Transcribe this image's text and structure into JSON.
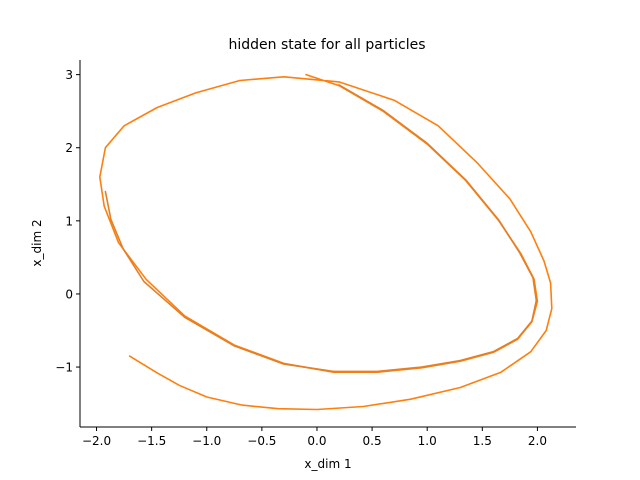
{
  "chart_data": {
    "type": "line",
    "title": "hidden state for all particles",
    "xlabel": "x_dim 1",
    "ylabel": "x_dim 2",
    "xlim": [
      -2.15,
      2.35
    ],
    "ylim": [
      -1.82,
      3.2
    ],
    "xticks": [
      -2.0,
      -1.5,
      -1.0,
      -0.5,
      0.0,
      0.5,
      1.0,
      1.5,
      2.0
    ],
    "yticks": [
      -1,
      0,
      1,
      2,
      3
    ],
    "xtick_labels": [
      "−2.0",
      "−1.5",
      "−1.0",
      "−0.5",
      "0.0",
      "0.5",
      "1.0",
      "1.5",
      "2.0"
    ],
    "ytick_labels": [
      "−1",
      "0",
      "1",
      "2",
      "3"
    ],
    "grid": false,
    "legend": "none",
    "spines": [
      "left",
      "bottom"
    ],
    "series": [
      {
        "color": "#ff7f0e",
        "x": [
          -1.7,
          -1.45,
          -1.25,
          -1.0,
          -0.68,
          -0.35,
          0.0,
          0.42,
          0.85,
          1.3,
          1.67,
          1.94,
          2.08,
          2.13,
          2.12,
          2.06,
          1.94,
          1.75,
          1.45,
          1.1,
          0.7,
          0.2,
          -0.3,
          -0.7,
          -1.1,
          -1.45,
          -1.75,
          -1.92,
          -1.97,
          -1.93,
          -1.8,
          -1.55,
          -1.2,
          -0.75,
          -0.3,
          0.15,
          0.55,
          0.95,
          1.3,
          1.6,
          1.82,
          1.95,
          2.0,
          1.97,
          1.85,
          1.65,
          1.35,
          1.0,
          0.6,
          0.2,
          -0.1
        ],
        "y": [
          -0.85,
          -1.08,
          -1.25,
          -1.41,
          -1.52,
          -1.57,
          -1.58,
          -1.54,
          -1.44,
          -1.28,
          -1.07,
          -0.79,
          -0.5,
          -0.2,
          0.15,
          0.45,
          0.85,
          1.3,
          1.8,
          2.3,
          2.65,
          2.9,
          2.97,
          2.92,
          2.75,
          2.55,
          2.3,
          2.0,
          1.6,
          1.2,
          0.7,
          0.2,
          -0.3,
          -0.7,
          -0.95,
          -1.07,
          -1.07,
          -1.01,
          -0.92,
          -0.8,
          -0.62,
          -0.38,
          -0.1,
          0.2,
          0.55,
          1.0,
          1.55,
          2.05,
          2.5,
          2.85,
          3.0
        ]
      },
      {
        "color": "#e27f27",
        "x": [
          -1.92,
          -1.87,
          -1.76,
          -1.57,
          -1.2,
          -0.75,
          -0.3,
          0.15,
          0.55,
          0.95,
          1.3,
          1.6,
          1.82,
          1.95,
          1.99,
          1.96,
          1.84,
          1.65,
          1.35,
          1.0,
          0.6,
          0.2
        ],
        "y": [
          1.4,
          1.02,
          0.62,
          0.17,
          -0.32,
          -0.71,
          -0.96,
          -1.06,
          -1.06,
          -1.0,
          -0.91,
          -0.79,
          -0.61,
          -0.37,
          -0.09,
          0.22,
          0.56,
          1.01,
          1.56,
          2.06,
          2.51,
          2.86
        ]
      }
    ]
  }
}
